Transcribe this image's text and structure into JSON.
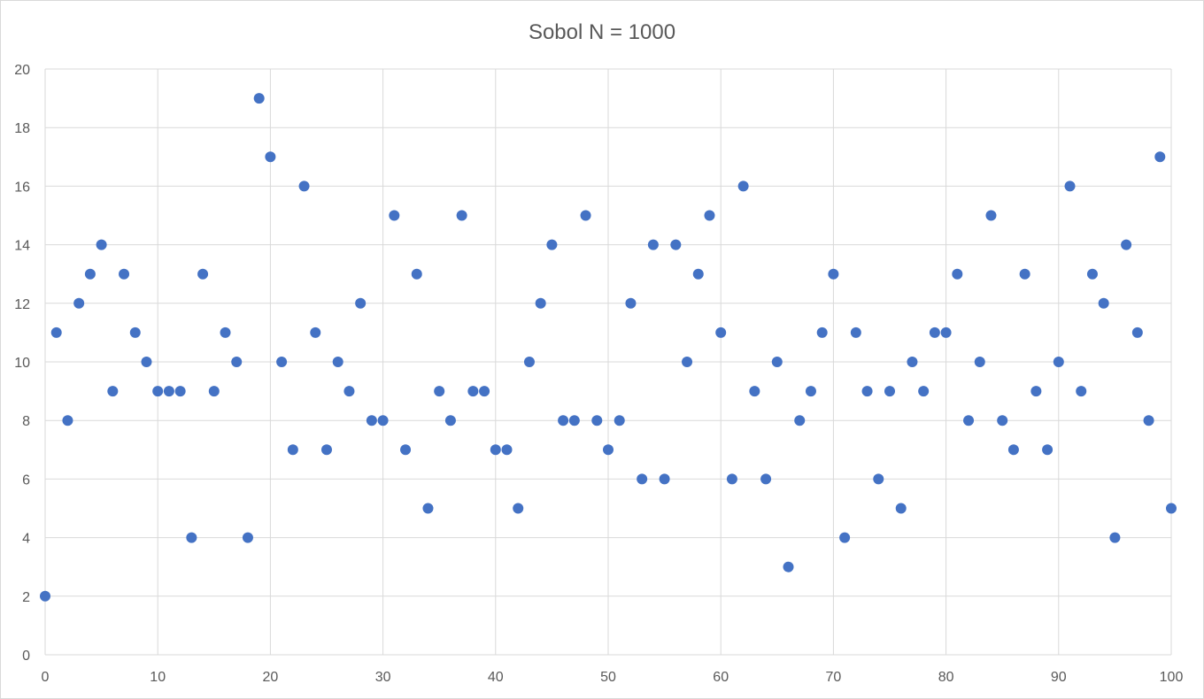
{
  "chart_data": {
    "type": "scatter",
    "title": "Sobol N = 1000",
    "xlabel": "",
    "ylabel": "",
    "xlim": [
      0,
      100
    ],
    "ylim": [
      0,
      20
    ],
    "x_ticks": [
      0,
      10,
      20,
      30,
      40,
      50,
      60,
      70,
      80,
      90,
      100
    ],
    "y_ticks": [
      0,
      2,
      4,
      6,
      8,
      10,
      12,
      14,
      16,
      18,
      20
    ],
    "grid": true,
    "legend": "none",
    "series": [
      {
        "color": "#4472c4",
        "x": [
          0,
          1,
          2,
          3,
          4,
          5,
          6,
          7,
          8,
          9,
          10,
          11,
          12,
          13,
          14,
          15,
          16,
          17,
          18,
          19,
          20,
          21,
          22,
          23,
          24,
          25,
          26,
          27,
          28,
          29,
          30,
          31,
          32,
          33,
          34,
          35,
          36,
          37,
          38,
          39,
          40,
          41,
          42,
          43,
          44,
          45,
          46,
          47,
          48,
          49,
          50,
          51,
          52,
          53,
          54,
          55,
          56,
          57,
          58,
          59,
          60,
          61,
          62,
          63,
          64,
          65,
          66,
          67,
          68,
          69,
          70,
          71,
          72,
          73,
          74,
          75,
          76,
          77,
          78,
          79,
          80,
          81,
          82,
          83,
          84,
          85,
          86,
          87,
          88,
          89,
          90,
          91,
          92,
          93,
          94,
          95,
          96,
          97,
          98,
          99,
          100
        ],
        "y": [
          2,
          11,
          8,
          12,
          13,
          14,
          9,
          13,
          11,
          10,
          9,
          9,
          9,
          4,
          13,
          9,
          11,
          10,
          4,
          19,
          17,
          10,
          7,
          16,
          11,
          7,
          10,
          9,
          12,
          8,
          8,
          15,
          7,
          13,
          5,
          9,
          8,
          15,
          9,
          9,
          7,
          7,
          5,
          10,
          12,
          14,
          8,
          8,
          15,
          8,
          7,
          8,
          12,
          6,
          14,
          6,
          14,
          10,
          13,
          15,
          11,
          6,
          16,
          9,
          6,
          10,
          3,
          8,
          9,
          11,
          13,
          4,
          11,
          9,
          6,
          9,
          5,
          10,
          9,
          11,
          11,
          13,
          8,
          10,
          15,
          8,
          7,
          13,
          9,
          7,
          10,
          16,
          9,
          13,
          12,
          4,
          14,
          11,
          8,
          17,
          5
        ]
      }
    ]
  }
}
